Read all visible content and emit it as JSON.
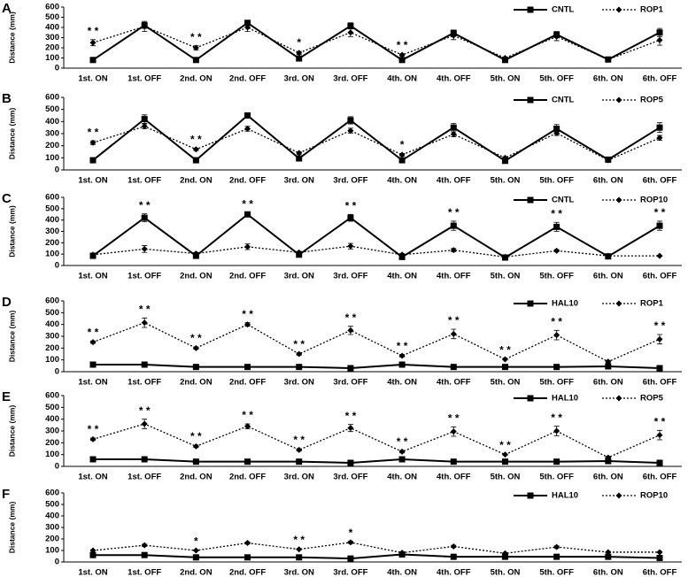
{
  "chart_data": [
    {
      "type": "line",
      "panel_label": "A",
      "y_label": "Distance (mm)",
      "categories": [
        "1st. ON",
        "1st. OFF",
        "2nd. ON",
        "2nd. OFF",
        "3rd. ON",
        "3rd. OFF",
        "4th. ON",
        "4th. OFF",
        "5th. ON",
        "5th. OFF",
        "6th. ON",
        "6th. OFF"
      ],
      "ylim": [
        0,
        600
      ],
      "yticks": [
        0,
        100,
        200,
        300,
        400,
        500,
        600
      ],
      "series": [
        {
          "name": "CNTL",
          "color": "#000000",
          "line_style": "solid",
          "marker": "square",
          "values": [
            80,
            420,
            80,
            445,
            95,
            415,
            80,
            345,
            80,
            330,
            85,
            350
          ],
          "errors": [
            5,
            30,
            5,
            20,
            5,
            30,
            5,
            30,
            5,
            30,
            5,
            40
          ]
        },
        {
          "name": "ROP1",
          "color": "#000000",
          "line_style": "dotted",
          "marker": "diamond",
          "values": [
            250,
            410,
            200,
            400,
            150,
            350,
            130,
            320,
            100,
            310,
            85,
            275
          ],
          "errors": [
            30,
            50,
            20,
            40,
            15,
            40,
            10,
            40,
            10,
            40,
            10,
            50
          ]
        }
      ],
      "annotations": [
        {
          "category": "1st. ON",
          "text": "* *"
        },
        {
          "category": "2nd. ON",
          "text": "* *"
        },
        {
          "category": "3rd. ON",
          "text": "*"
        },
        {
          "category": "4th. ON",
          "text": "* *"
        }
      ]
    },
    {
      "type": "line",
      "panel_label": "B",
      "y_label": "Distance (mm)",
      "categories": [
        "1st. ON",
        "1st. OFF",
        "2nd. ON",
        "2nd. OFF",
        "3rd. ON",
        "3rd. OFF",
        "4th. ON",
        "4th. OFF",
        "5th. ON",
        "5th. OFF",
        "6th. ON",
        "6th. OFF"
      ],
      "ylim": [
        0,
        600
      ],
      "yticks": [
        0,
        100,
        200,
        300,
        400,
        500,
        600
      ],
      "series": [
        {
          "name": "CNTL",
          "color": "#000000",
          "line_style": "solid",
          "marker": "square",
          "values": [
            80,
            420,
            80,
            450,
            95,
            410,
            80,
            350,
            75,
            340,
            85,
            350
          ],
          "errors": [
            5,
            35,
            5,
            15,
            5,
            30,
            5,
            35,
            5,
            35,
            5,
            40
          ]
        },
        {
          "name": "ROP5",
          "color": "#000000",
          "line_style": "dotted",
          "marker": "diamond",
          "values": [
            225,
            360,
            170,
            340,
            140,
            325,
            125,
            295,
            100,
            305,
            80,
            265
          ],
          "errors": [
            15,
            20,
            10,
            20,
            10,
            20,
            10,
            20,
            10,
            20,
            5,
            20
          ]
        }
      ],
      "annotations": [
        {
          "category": "1st. ON",
          "text": "* *"
        },
        {
          "category": "2nd. ON",
          "text": "* *"
        },
        {
          "category": "4th. ON",
          "text": "*"
        }
      ]
    },
    {
      "type": "line",
      "panel_label": "C",
      "y_label": "Distance (mm)",
      "categories": [
        "1st. ON",
        "1st. OFF",
        "2nd. ON",
        "2nd. OFF",
        "3rd. ON",
        "3rd. OFF",
        "4th. ON",
        "4th. OFF",
        "5th. ON",
        "5th. OFF",
        "6th. ON",
        "6th. OFF"
      ],
      "ylim": [
        0,
        600
      ],
      "yticks": [
        0,
        100,
        200,
        300,
        400,
        500,
        600
      ],
      "series": [
        {
          "name": "CNTL",
          "color": "#000000",
          "line_style": "solid",
          "marker": "square",
          "values": [
            85,
            420,
            85,
            450,
            95,
            420,
            75,
            350,
            70,
            340,
            80,
            350
          ],
          "errors": [
            5,
            35,
            5,
            15,
            5,
            30,
            5,
            40,
            5,
            40,
            5,
            40
          ]
        },
        {
          "name": "ROP10",
          "color": "#000000",
          "line_style": "dotted",
          "marker": "diamond",
          "values": [
            95,
            145,
            105,
            165,
            115,
            170,
            95,
            135,
            75,
            130,
            85,
            85
          ],
          "errors": [
            10,
            30,
            10,
            25,
            10,
            25,
            10,
            15,
            5,
            10,
            5,
            5
          ]
        }
      ],
      "annotations": [
        {
          "category": "1st. OFF",
          "text": "* *"
        },
        {
          "category": "2nd. OFF",
          "text": "* *"
        },
        {
          "category": "3rd. OFF",
          "text": "* *"
        },
        {
          "category": "4th. OFF",
          "text": "* *"
        },
        {
          "category": "5th. OFF",
          "text": "* *"
        },
        {
          "category": "6th. OFF",
          "text": "* *"
        }
      ]
    },
    {
      "type": "line",
      "panel_label": "D",
      "y_label": "Distance (mm)",
      "categories": [
        "1st. ON",
        "1st. OFF",
        "2nd. ON",
        "2nd. OFF",
        "3rd. ON",
        "3rd. OFF",
        "4th. ON",
        "4th. OFF",
        "5th. ON",
        "5th. OFF",
        "6th. ON",
        "6th. OFF"
      ],
      "ylim": [
        0,
        600
      ],
      "yticks": [
        0,
        100,
        200,
        300,
        400,
        500,
        600
      ],
      "series": [
        {
          "name": "HAL10",
          "color": "#000000",
          "line_style": "solid",
          "marker": "square",
          "values": [
            60,
            60,
            40,
            40,
            40,
            30,
            60,
            40,
            40,
            40,
            45,
            30
          ],
          "errors": [
            5,
            15,
            5,
            15,
            10,
            10,
            10,
            10,
            5,
            10,
            10,
            5
          ]
        },
        {
          "name": "ROP1",
          "color": "#000000",
          "line_style": "dotted",
          "marker": "diamond",
          "values": [
            250,
            415,
            200,
            400,
            150,
            350,
            135,
            320,
            105,
            310,
            85,
            275
          ],
          "errors": [
            10,
            40,
            10,
            15,
            10,
            35,
            10,
            40,
            5,
            40,
            10,
            40
          ]
        }
      ],
      "annotations": [
        {
          "category": "1st. ON",
          "text": "* *"
        },
        {
          "category": "1st. OFF",
          "text": "* *"
        },
        {
          "category": "2nd. ON",
          "text": "* *"
        },
        {
          "category": "2nd. OFF",
          "text": "* *"
        },
        {
          "category": "3rd. ON",
          "text": "* *"
        },
        {
          "category": "3rd. OFF",
          "text": "* *"
        },
        {
          "category": "4th. ON",
          "text": "* *"
        },
        {
          "category": "4th. OFF",
          "text": "* *"
        },
        {
          "category": "5th. ON",
          "text": "* *"
        },
        {
          "category": "5th. OFF",
          "text": "* *"
        },
        {
          "category": "6th. OFF",
          "text": "* *"
        }
      ]
    },
    {
      "type": "line",
      "panel_label": "E",
      "y_label": "Distance (mm)",
      "categories": [
        "1st. ON",
        "1st. OFF",
        "2nd. ON",
        "2nd. OFF",
        "3rd. ON",
        "3rd. OFF",
        "4th. ON",
        "4th. OFF",
        "5th. ON",
        "5th. OFF",
        "6th. ON",
        "6th. OFF"
      ],
      "ylim": [
        0,
        600
      ],
      "yticks": [
        0,
        100,
        200,
        300,
        400,
        500,
        600
      ],
      "series": [
        {
          "name": "HAL10",
          "color": "#000000",
          "line_style": "solid",
          "marker": "square",
          "values": [
            60,
            60,
            40,
            40,
            40,
            30,
            60,
            40,
            40,
            40,
            45,
            30
          ],
          "errors": [
            5,
            15,
            5,
            15,
            10,
            10,
            10,
            10,
            5,
            10,
            10,
            5
          ]
        },
        {
          "name": "ROP5",
          "color": "#000000",
          "line_style": "dotted",
          "marker": "diamond",
          "values": [
            230,
            360,
            170,
            340,
            140,
            325,
            125,
            295,
            100,
            300,
            75,
            265
          ],
          "errors": [
            10,
            40,
            10,
            20,
            10,
            30,
            10,
            40,
            5,
            40,
            10,
            40
          ]
        }
      ],
      "annotations": [
        {
          "category": "1st. ON",
          "text": "* *"
        },
        {
          "category": "1st. OFF",
          "text": "* *"
        },
        {
          "category": "2nd. ON",
          "text": "* *"
        },
        {
          "category": "2nd. OFF",
          "text": "* *"
        },
        {
          "category": "3rd. ON",
          "text": "* *"
        },
        {
          "category": "3rd. OFF",
          "text": "* *"
        },
        {
          "category": "4th. ON",
          "text": "* *"
        },
        {
          "category": "4th. OFF",
          "text": "* *"
        },
        {
          "category": "5th. ON",
          "text": "* *"
        },
        {
          "category": "5th. OFF",
          "text": "* *"
        },
        {
          "category": "6th. OFF",
          "text": "* *"
        }
      ]
    },
    {
      "type": "line",
      "panel_label": "F",
      "y_label": "Distance (mm)",
      "categories": [
        "1st. ON",
        "1st. OFF",
        "2nd. ON",
        "2nd. OFF",
        "3rd. ON",
        "3rd. OFF",
        "4th. ON",
        "4th. OFF",
        "5th. ON",
        "5th. OFF",
        "6th. ON",
        "6th. OFF"
      ],
      "ylim": [
        0,
        600
      ],
      "yticks": [
        0,
        100,
        200,
        300,
        400,
        500,
        600
      ],
      "series": [
        {
          "name": "HAL10",
          "color": "#000000",
          "line_style": "solid",
          "marker": "square",
          "values": [
            60,
            60,
            40,
            40,
            40,
            30,
            65,
            45,
            45,
            45,
            45,
            35
          ],
          "errors": [
            5,
            15,
            5,
            15,
            10,
            10,
            10,
            10,
            5,
            10,
            10,
            5
          ]
        },
        {
          "name": "ROP10",
          "color": "#000000",
          "line_style": "dotted",
          "marker": "diamond",
          "values": [
            100,
            145,
            100,
            165,
            110,
            170,
            80,
            135,
            75,
            130,
            85,
            85
          ],
          "errors": [
            5,
            10,
            5,
            10,
            5,
            10,
            5,
            10,
            5,
            10,
            5,
            5
          ]
        }
      ],
      "annotations": [
        {
          "category": "2nd. ON",
          "text": "*"
        },
        {
          "category": "3rd. ON",
          "text": "* *"
        },
        {
          "category": "3rd. OFF",
          "text": "*"
        }
      ]
    }
  ]
}
